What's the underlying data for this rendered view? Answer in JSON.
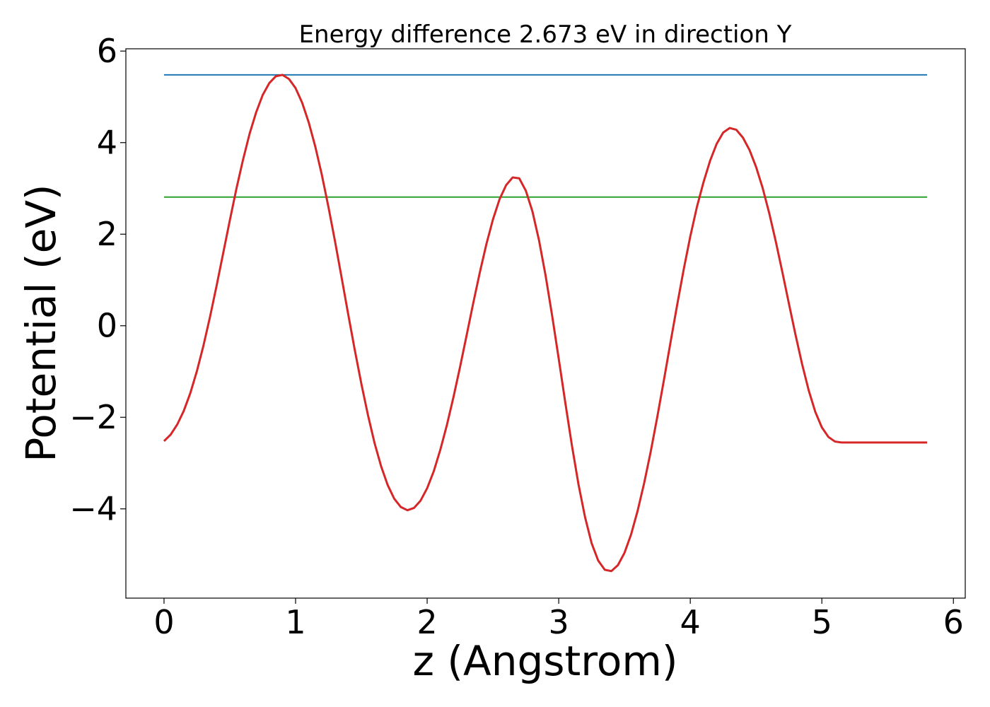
{
  "chart_data": {
    "type": "line",
    "title": "Energy difference 2.673 eV in direction Y",
    "xlabel": "z (Angstrom)",
    "ylabel": "Potential (eV)",
    "xlim": [
      -0.29,
      6.09
    ],
    "ylim": [
      -5.95,
      6.05
    ],
    "x_ticks": [
      0,
      1,
      2,
      3,
      4,
      5,
      6
    ],
    "x_tick_labels": [
      "0",
      "1",
      "2",
      "3",
      "4",
      "5",
      "6"
    ],
    "y_ticks": [
      -4,
      -2,
      0,
      2,
      4,
      6
    ],
    "y_tick_labels": [
      "−4",
      "−2",
      "0",
      "2",
      "4",
      "6"
    ],
    "grid": false,
    "series": [
      {
        "color": "#1f77b4",
        "x": [
          0,
          5.8
        ],
        "y": [
          5.48,
          5.48
        ]
      },
      {
        "color": "#2ca02c",
        "x": [
          0,
          5.8
        ],
        "y": [
          2.81,
          2.81
        ]
      },
      {
        "color": "#d62728",
        "x": [
          0,
          0.05,
          0.1,
          0.15,
          0.2,
          0.25,
          0.3,
          0.35,
          0.4,
          0.45,
          0.5,
          0.55,
          0.6,
          0.65,
          0.7,
          0.75,
          0.8,
          0.85,
          0.9,
          0.95,
          1.0,
          1.05,
          1.1,
          1.15,
          1.2,
          1.25,
          1.3,
          1.35,
          1.4,
          1.45,
          1.5,
          1.55,
          1.6,
          1.65,
          1.7,
          1.75,
          1.8,
          1.85,
          1.9,
          1.95,
          2.0,
          2.05,
          2.1,
          2.15,
          2.2,
          2.25,
          2.3,
          2.35,
          2.4,
          2.45,
          2.5,
          2.55,
          2.6,
          2.65,
          2.7,
          2.75,
          2.8,
          2.85,
          2.9,
          2.95,
          3.0,
          3.05,
          3.1,
          3.15,
          3.2,
          3.25,
          3.3,
          3.35,
          3.4,
          3.45,
          3.5,
          3.55,
          3.6,
          3.65,
          3.7,
          3.75,
          3.8,
          3.85,
          3.9,
          3.95,
          4.0,
          4.05,
          4.1,
          4.15,
          4.2,
          4.25,
          4.3,
          4.35,
          4.4,
          4.45,
          4.5,
          4.55,
          4.6,
          4.65,
          4.7,
          4.75,
          4.8,
          4.85,
          4.9,
          4.95,
          5.0,
          5.05,
          5.1,
          5.15,
          5.2,
          5.25,
          5.3,
          5.35,
          5.4,
          5.45,
          5.5,
          5.55,
          5.6,
          5.65,
          5.7,
          5.75,
          5.8
        ],
        "y": [
          -2.52,
          -2.38,
          -2.16,
          -1.86,
          -1.47,
          -0.99,
          -0.43,
          0.2,
          0.88,
          1.59,
          2.3,
          2.99,
          3.62,
          4.19,
          4.66,
          5.04,
          5.3,
          5.45,
          5.48,
          5.39,
          5.19,
          4.87,
          4.44,
          3.91,
          3.29,
          2.59,
          1.84,
          1.05,
          0.25,
          -0.53,
          -1.27,
          -1.95,
          -2.56,
          -3.07,
          -3.48,
          -3.78,
          -3.96,
          -4.03,
          -3.98,
          -3.82,
          -3.55,
          -3.18,
          -2.71,
          -2.17,
          -1.56,
          -0.9,
          -0.21,
          0.49,
          1.16,
          1.78,
          2.32,
          2.76,
          3.07,
          3.24,
          3.22,
          2.95,
          2.5,
          1.87,
          1.1,
          0.22,
          -0.72,
          -1.68,
          -2.61,
          -3.46,
          -4.18,
          -4.75,
          -5.13,
          -5.33,
          -5.36,
          -5.23,
          -4.96,
          -4.56,
          -4.04,
          -3.43,
          -2.74,
          -1.98,
          -1.18,
          -0.36,
          0.45,
          1.23,
          1.95,
          2.59,
          3.13,
          3.6,
          3.97,
          4.22,
          4.32,
          4.28,
          4.11,
          3.84,
          3.47,
          3.01,
          2.46,
          1.84,
          1.17,
          0.48,
          -0.2,
          -0.84,
          -1.41,
          -1.88,
          -2.22,
          -2.43,
          -2.53,
          -2.55,
          -2.55,
          -2.55,
          -2.55,
          -2.55,
          -2.55,
          -2.55,
          -2.55,
          -2.55,
          -2.55,
          -2.55,
          -2.55,
          -2.55,
          -2.55
        ]
      }
    ]
  }
}
